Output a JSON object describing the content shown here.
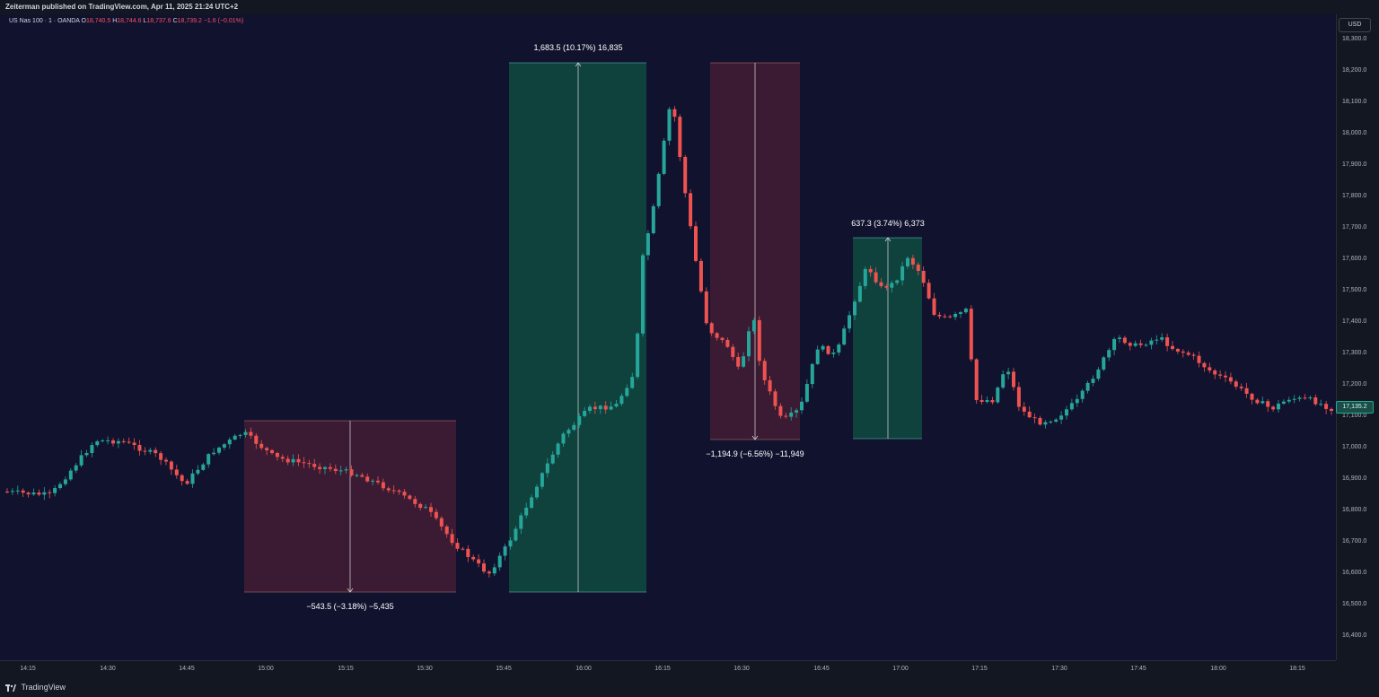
{
  "header": {
    "published_text": "Zeiterman published on TradingView.com, Apr 11, 2025 21:24 UTC+2"
  },
  "legend": {
    "symbol": "US Nas 100 · 1 · OANDA",
    "open_label": "O",
    "open": "18,740.5",
    "high_label": "H",
    "high": "18,744.6",
    "low_label": "L",
    "low": "18,737.6",
    "close_label": "C",
    "close": "18,739.2",
    "change": "−1.6 (−0.01%)"
  },
  "currency_button": "USD",
  "price_axis": {
    "ticks": [
      "18,300.0",
      "18,200.0",
      "18,100.0",
      "18,000.0",
      "17,900.0",
      "17,800.0",
      "17,700.0",
      "17,600.0",
      "17,500.0",
      "17,400.0",
      "17,300.0",
      "17,200.0",
      "17,100.0",
      "17,000.0",
      "16,900.0",
      "16,800.0",
      "16,700.0",
      "16,600.0",
      "16,500.0",
      "16,400.0"
    ],
    "last_price": "17,135.2"
  },
  "time_axis": {
    "ticks": [
      "14:15",
      "14:30",
      "14:45",
      "15:00",
      "15:15",
      "15:30",
      "15:45",
      "16:00",
      "16:15",
      "16:30",
      "16:45",
      "17:00",
      "17:15",
      "17:30",
      "17:45",
      "18:00",
      "18:15"
    ]
  },
  "measurements": [
    {
      "label": "−543.5 (−3.18%) −5,435",
      "direction": "down",
      "color": "#f23645"
    },
    {
      "label": "1,683.5 (10.17%) 16,835",
      "direction": "up",
      "color": "#089981"
    },
    {
      "label": "−1,194.9 (−6.56%) −11,949",
      "direction": "down",
      "color": "#f23645"
    },
    {
      "label": "637.3 (3.74%) 6,373",
      "direction": "up",
      "color": "#089981"
    }
  ],
  "colors": {
    "up": "#26a69a",
    "down": "#ef5350",
    "background": "#11122e"
  },
  "footer": {
    "brand": "TradingView",
    "logo_icon": "tradingview-logo-icon"
  }
}
